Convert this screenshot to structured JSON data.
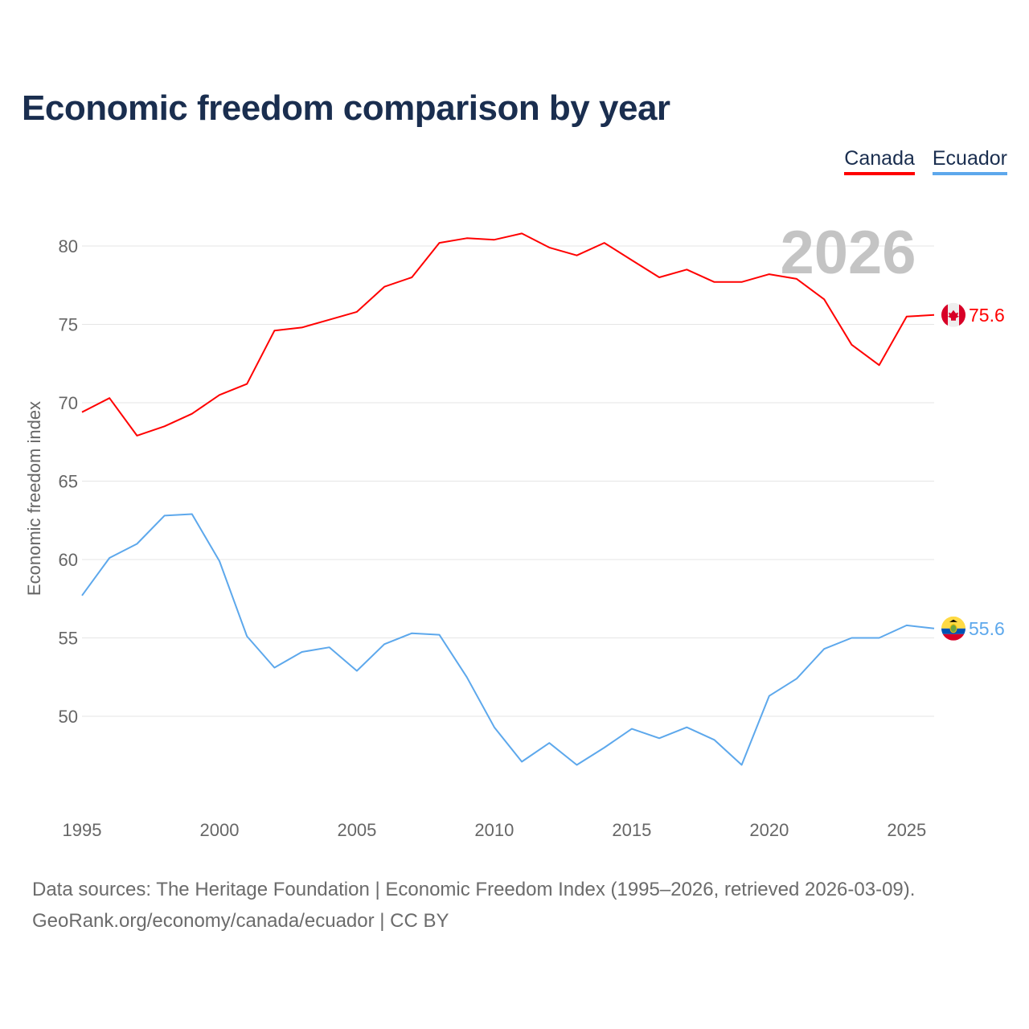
{
  "title": "Economic freedom comparison by year",
  "legend": [
    {
      "label": "Canada",
      "color": "#ff0000"
    },
    {
      "label": "Ecuador",
      "color": "#5da8ec"
    }
  ],
  "footer": {
    "line1": "Data sources: The Heritage Foundation | Economic Freedom Index (1995–2026, retrieved 2026-03-09).",
    "line2": "GeoRank.org/economy/canada/ecuador | CC BY"
  },
  "chart_data": {
    "type": "line",
    "title": "Economic freedom comparison by year",
    "ylabel": "Economic freedom index",
    "xlabel": "",
    "watermark_year": "2026",
    "x": [
      1995,
      1996,
      1997,
      1998,
      1999,
      2000,
      2001,
      2002,
      2003,
      2004,
      2005,
      2006,
      2007,
      2008,
      2009,
      2010,
      2011,
      2012,
      2013,
      2014,
      2015,
      2016,
      2017,
      2018,
      2019,
      2020,
      2021,
      2022,
      2023,
      2024,
      2025,
      2026
    ],
    "xlim": [
      1995,
      2026
    ],
    "ylim": [
      44.5,
      83
    ],
    "xticks": [
      1995,
      2000,
      2005,
      2010,
      2015,
      2020,
      2025
    ],
    "yticks": [
      50,
      55,
      60,
      65,
      70,
      75,
      80
    ],
    "grid": true,
    "legend_position": "top-right",
    "series": [
      {
        "name": "Canada",
        "color": "#ff0000",
        "end_label": "75.6",
        "flag": "canada-flag",
        "values": [
          69.4,
          70.3,
          67.9,
          68.5,
          69.3,
          70.5,
          71.2,
          74.6,
          74.8,
          75.3,
          75.8,
          77.4,
          78.0,
          80.2,
          80.5,
          80.4,
          80.8,
          79.9,
          79.4,
          80.2,
          79.1,
          78.0,
          78.5,
          77.7,
          77.7,
          78.2,
          77.9,
          76.6,
          73.7,
          72.4,
          75.5,
          75.6
        ]
      },
      {
        "name": "Ecuador",
        "color": "#5da8ec",
        "end_label": "55.6",
        "flag": "ecuador-flag",
        "values": [
          57.7,
          60.1,
          61.0,
          62.8,
          62.9,
          59.9,
          55.1,
          53.1,
          54.1,
          54.4,
          52.9,
          54.6,
          55.3,
          55.2,
          52.5,
          49.3,
          47.1,
          48.3,
          46.9,
          48.0,
          49.2,
          48.6,
          49.3,
          48.5,
          46.9,
          51.3,
          52.4,
          54.3,
          55.0,
          55.0,
          55.8,
          55.6
        ]
      }
    ]
  }
}
